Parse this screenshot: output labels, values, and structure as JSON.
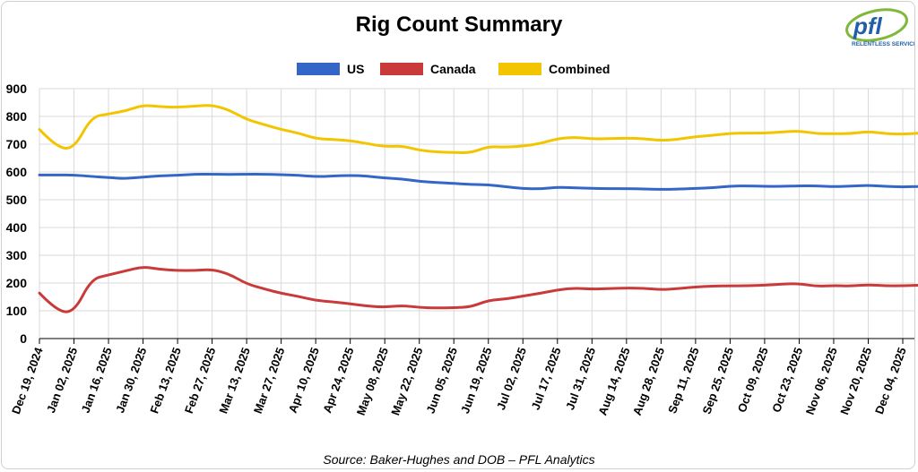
{
  "chart_data": {
    "type": "line",
    "title": "Rig Count Summary",
    "source": "Source: Baker-Hughes and DOB – PFL Analytics",
    "xlabel": "",
    "ylabel": "",
    "ylim": [
      0,
      900
    ],
    "yticks": [
      0,
      100,
      200,
      300,
      400,
      500,
      600,
      700,
      800,
      900
    ],
    "grid": true,
    "legend_position": "top-center",
    "x_tick_labels": [
      "Dec 19, 2024",
      "Jan 02, 2025",
      "Jan 16, 2025",
      "Jan 30, 2025",
      "Feb 13, 2025",
      "Feb 27, 2025",
      "Mar 13, 2025",
      "Mar 27, 2025",
      "Apr 10, 2025",
      "Apr 24, 2025",
      "May 08, 2025",
      "May 22, 2025",
      "Jun 05, 2025",
      "Jun 19, 2025",
      "Jul 02, 2025",
      "Jul 17, 2025",
      "Jul 31, 2025",
      "Aug 14, 2025",
      "Aug 28, 2025",
      "Sep 11, 2025",
      "Sep 25, 2025",
      "Oct 09, 2025",
      "Oct 23, 2025",
      "Nov 06, 2025",
      "Nov 20, 2025",
      "Dec 04, 2025"
    ],
    "x": [
      "Dec 19, 2024",
      "Dec 26, 2024",
      "Jan 02, 2025",
      "Jan 09, 2025",
      "Jan 16, 2025",
      "Jan 23, 2025",
      "Jan 30, 2025",
      "Feb 06, 2025",
      "Feb 13, 2025",
      "Feb 20, 2025",
      "Feb 27, 2025",
      "Mar 06, 2025",
      "Mar 13, 2025",
      "Mar 20, 2025",
      "Mar 27, 2025",
      "Apr 03, 2025",
      "Apr 10, 2025",
      "Apr 17, 2025",
      "Apr 24, 2025",
      "May 01, 2025",
      "May 08, 2025",
      "May 15, 2025",
      "May 22, 2025",
      "May 29, 2025",
      "Jun 05, 2025",
      "Jun 12, 2025",
      "Jun 19, 2025",
      "Jun 26, 2025",
      "Jul 02, 2025",
      "Jul 10, 2025",
      "Jul 17, 2025",
      "Jul 24, 2025",
      "Jul 31, 2025",
      "Aug 07, 2025",
      "Aug 14, 2025",
      "Aug 21, 2025",
      "Aug 28, 2025",
      "Sep 04, 2025",
      "Sep 11, 2025",
      "Sep 18, 2025",
      "Sep 25, 2025",
      "Oct 02, 2025",
      "Oct 09, 2025",
      "Oct 16, 2025",
      "Oct 23, 2025",
      "Oct 30, 2025",
      "Nov 06, 2025",
      "Nov 13, 2025",
      "Nov 20, 2025",
      "Nov 27, 2025",
      "Dec 04, 2025",
      "Dec 11, 2025"
    ],
    "series": [
      {
        "name": "US",
        "color": "#3466c7",
        "values": [
          589,
          589,
          589,
          584,
          580,
          576,
          582,
          586,
          588,
          592,
          592,
          591,
          592,
          592,
          590,
          588,
          583,
          585,
          588,
          585,
          578,
          575,
          566,
          562,
          559,
          555,
          554,
          547,
          540,
          539,
          545,
          543,
          541,
          540,
          540,
          539,
          537,
          538,
          541,
          543,
          549,
          550,
          548,
          548,
          550,
          550,
          547,
          549,
          552,
          548,
          546,
          548
        ]
      },
      {
        "name": "Canada",
        "color": "#c93a3a",
        "values": [
          164,
          99,
          94,
          214,
          229,
          244,
          259,
          249,
          245,
          245,
          249,
          232,
          197,
          179,
          163,
          152,
          137,
          132,
          125,
          117,
          113,
          119,
          112,
          110,
          111,
          114,
          138,
          142,
          153,
          163,
          175,
          182,
          178,
          180,
          182,
          181,
          176,
          180,
          186,
          189,
          190,
          190,
          192,
          196,
          198,
          188,
          191,
          189,
          194,
          190,
          190,
          192
        ]
      },
      {
        "name": "Combined",
        "color": "#f2c500",
        "values": [
          753,
          688,
          683,
          798,
          809,
          820,
          841,
          835,
          833,
          837,
          841,
          823,
          789,
          771,
          753,
          740,
          720,
          717,
          713,
          702,
          691,
          694,
          678,
          672,
          670,
          669,
          692,
          689,
          693,
          702,
          720,
          725,
          719,
          720,
          722,
          720,
          713,
          718,
          727,
          732,
          739,
          740,
          740,
          744,
          748,
          738,
          738,
          738,
          746,
          738,
          736,
          740
        ]
      }
    ]
  }
}
